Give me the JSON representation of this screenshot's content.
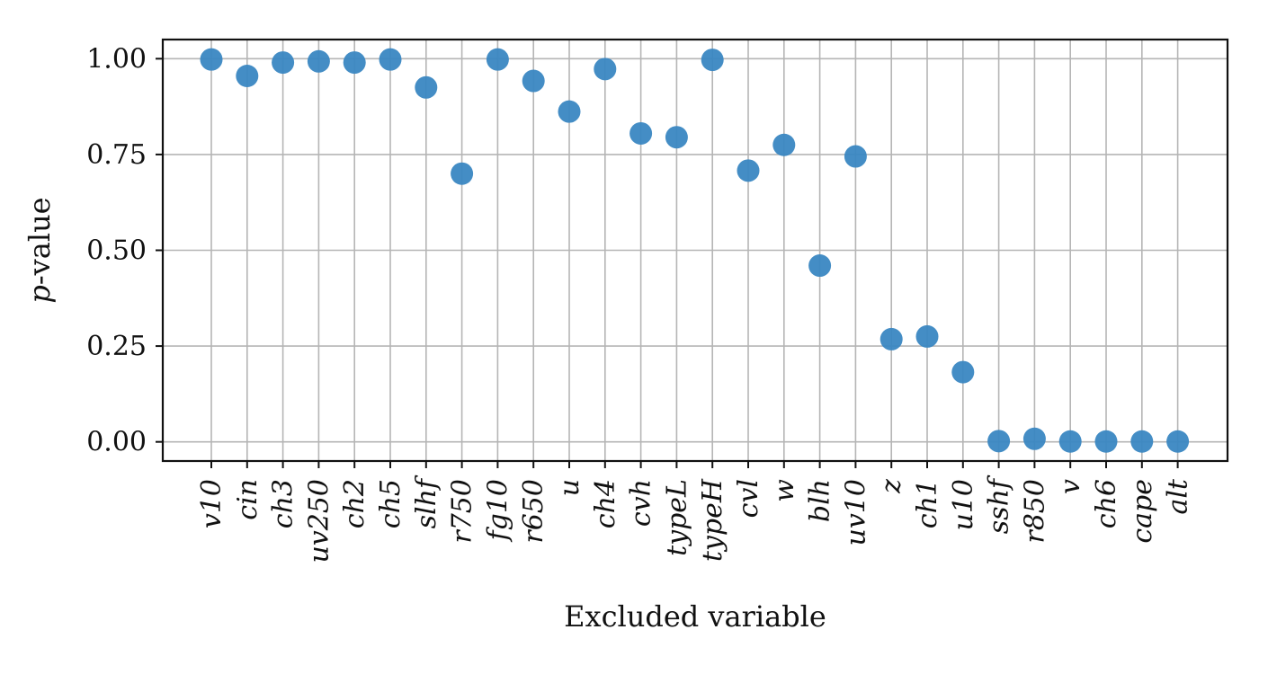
{
  "chart_data": {
    "type": "scatter",
    "xlabel": "Excluded variable",
    "ylabel": "p-value",
    "ylabel_italic_part": "p",
    "ylabel_rest": "-value",
    "ylim": [
      -0.05,
      1.05
    ],
    "yticks": [
      0.0,
      0.25,
      0.5,
      0.75,
      1.0
    ],
    "ytick_labels": [
      "0.00",
      "0.25",
      "0.50",
      "0.75",
      "1.00"
    ],
    "grid": true,
    "legend": "none",
    "marker_color": "#3a87c2",
    "categories": [
      "v10",
      "cin",
      "ch3",
      "uv250",
      "ch2",
      "ch5",
      "slhf",
      "r750",
      "fg10",
      "r650",
      "u",
      "ch4",
      "cvh",
      "typeL",
      "typeH",
      "cvl",
      "w",
      "blh",
      "uv10",
      "z",
      "ch1",
      "u10",
      "sshf",
      "r850",
      "v",
      "ch6",
      "cape",
      "alt"
    ],
    "values": [
      0.998,
      0.955,
      0.99,
      0.993,
      0.99,
      0.998,
      0.925,
      0.7,
      0.998,
      0.942,
      0.862,
      0.973,
      0.805,
      0.795,
      0.997,
      0.708,
      0.775,
      0.46,
      0.745,
      0.268,
      0.275,
      0.182,
      0.002,
      0.008,
      0.001,
      0.001,
      0.001,
      0.001
    ]
  }
}
